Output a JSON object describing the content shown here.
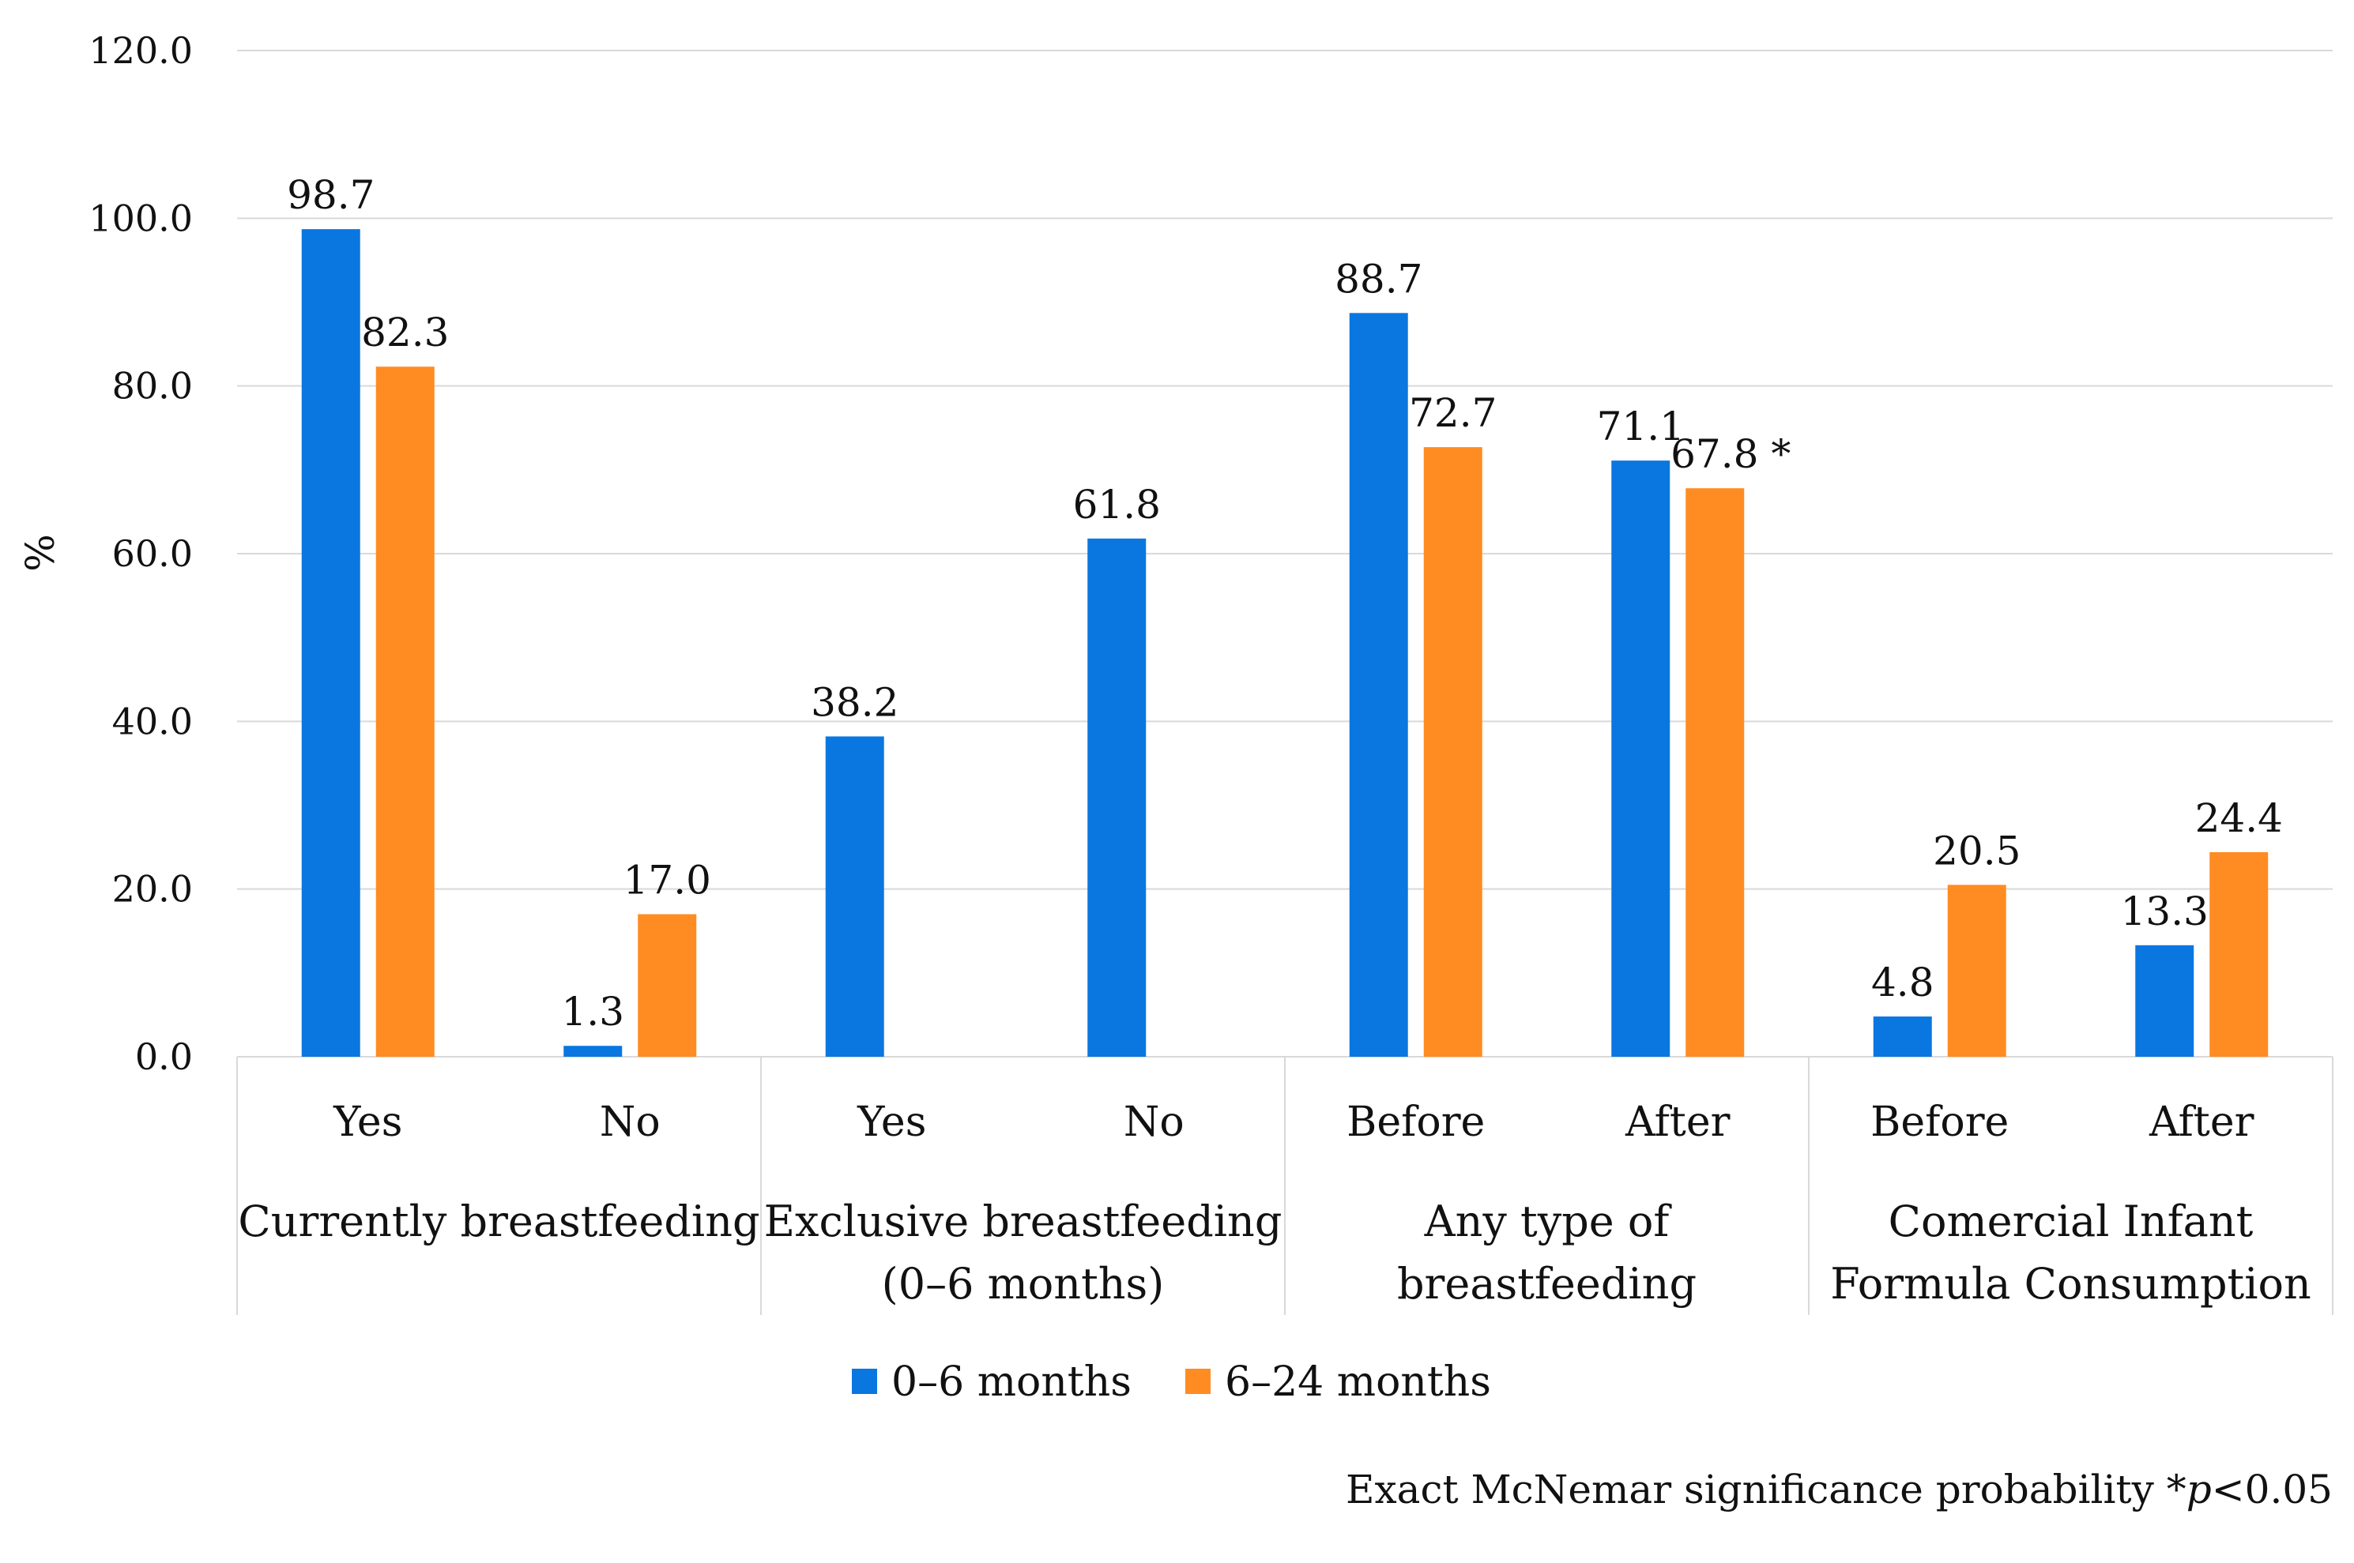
{
  "chart_data": {
    "type": "bar",
    "ylabel": "%",
    "ylim": [
      0,
      120
    ],
    "yticks": [
      "0.0",
      "20.0",
      "40.0",
      "60.0",
      "80.0",
      "100.0",
      "120.0"
    ],
    "grid": true,
    "groups": [
      {
        "label": "Currently breastfeeding",
        "categories": [
          "Yes",
          "No"
        ]
      },
      {
        "label": "Exclusive breastfeeding (0–6 months)",
        "label_lines": [
          "Exclusive breastfeeding",
          "(0–6 months)"
        ],
        "categories": [
          "Yes",
          "No"
        ]
      },
      {
        "label": "Any type of breastfeeding",
        "label_lines": [
          "Any type of",
          "breastfeeding"
        ],
        "categories": [
          "Before",
          "After"
        ]
      },
      {
        "label": "Comercial Infant Formula Consumption",
        "label_lines": [
          "Comercial Infant",
          "Formula Consumption"
        ],
        "categories": [
          "Before",
          "After"
        ]
      }
    ],
    "series": [
      {
        "name": "0–6 months",
        "color": "#0a77e0",
        "values": [
          98.7,
          1.3,
          38.2,
          61.8,
          88.7,
          71.1,
          4.8,
          13.3
        ],
        "labels": [
          "98.7",
          "1.3",
          "38.2",
          "61.8",
          "88.7",
          "71.1",
          "4.8",
          "13.3"
        ]
      },
      {
        "name": "6–24 months",
        "color": "#ff8c22",
        "values": [
          82.3,
          17.0,
          null,
          null,
          72.7,
          67.8,
          20.5,
          24.4
        ],
        "labels": [
          "82.3",
          "17.0",
          null,
          null,
          "72.7",
          "67.8 *",
          "20.5",
          "24.4"
        ]
      }
    ],
    "legend_position": "bottom",
    "footnote": {
      "text": "Exact McNemar significance probability *",
      "italic": "p",
      "suffix": "<0.05"
    }
  }
}
